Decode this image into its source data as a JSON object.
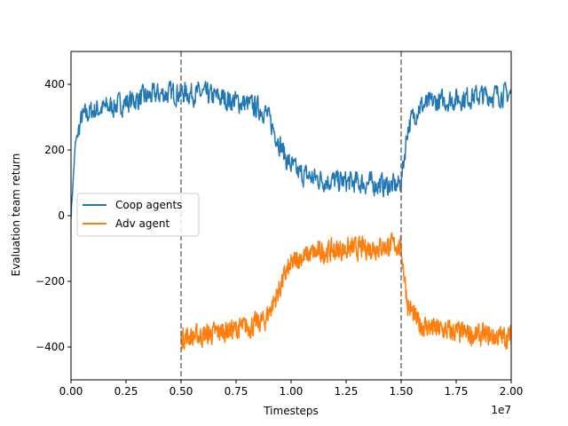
{
  "chart_data": {
    "type": "line",
    "xlabel": "Timesteps",
    "ylabel": "Evaluation team return",
    "x_scale_label": "1e7",
    "xlim": [
      0,
      20000000
    ],
    "ylim": [
      -500,
      500
    ],
    "x_ticks": [
      0,
      2500000,
      5000000,
      7500000,
      10000000,
      12500000,
      15000000,
      17500000,
      20000000
    ],
    "x_tick_labels": [
      "0.00",
      "0.25",
      "0.50",
      "0.75",
      "1.00",
      "1.25",
      "1.50",
      "1.75",
      "2.00"
    ],
    "y_ticks": [
      -400,
      -200,
      0,
      200,
      400
    ],
    "y_tick_labels": [
      "−400",
      "−200",
      "0",
      "200",
      "400"
    ],
    "grid": false,
    "legend_position": "center-left",
    "vlines": [
      5000000,
      15000000
    ],
    "series": [
      {
        "name": "Coop agents",
        "color": "#1f77b4",
        "x": [
          0,
          200000,
          500000,
          1000000,
          2000000,
          3000000,
          4000000,
          5000000,
          6000000,
          7000000,
          8000000,
          8800000,
          9300000,
          9800000,
          10300000,
          11000000,
          12000000,
          13000000,
          14000000,
          14800000,
          15000000,
          15300000,
          15800000,
          16500000,
          17500000,
          18500000,
          20000000
        ],
        "values": [
          0,
          220,
          300,
          320,
          335,
          355,
          370,
          375,
          370,
          355,
          340,
          320,
          250,
          170,
          130,
          115,
          105,
          100,
          95,
          90,
          100,
          270,
          330,
          345,
          355,
          365,
          370
        ]
      },
      {
        "name": "Adv agent",
        "color": "#ff7f0e",
        "x": [
          5000000,
          6000000,
          7000000,
          8000000,
          8800000,
          9300000,
          9800000,
          10300000,
          11000000,
          12000000,
          13000000,
          14000000,
          14800000,
          15000000,
          15300000,
          15800000,
          16500000,
          17500000,
          18500000,
          20000000
        ],
        "values": [
          -370,
          -365,
          -350,
          -340,
          -320,
          -250,
          -170,
          -130,
          -115,
          -105,
          -100,
          -95,
          -90,
          -100,
          -270,
          -330,
          -345,
          -355,
          -365,
          -370
        ]
      }
    ]
  },
  "styles": {
    "vline_color": "#707070",
    "axis_color": "#000000"
  }
}
